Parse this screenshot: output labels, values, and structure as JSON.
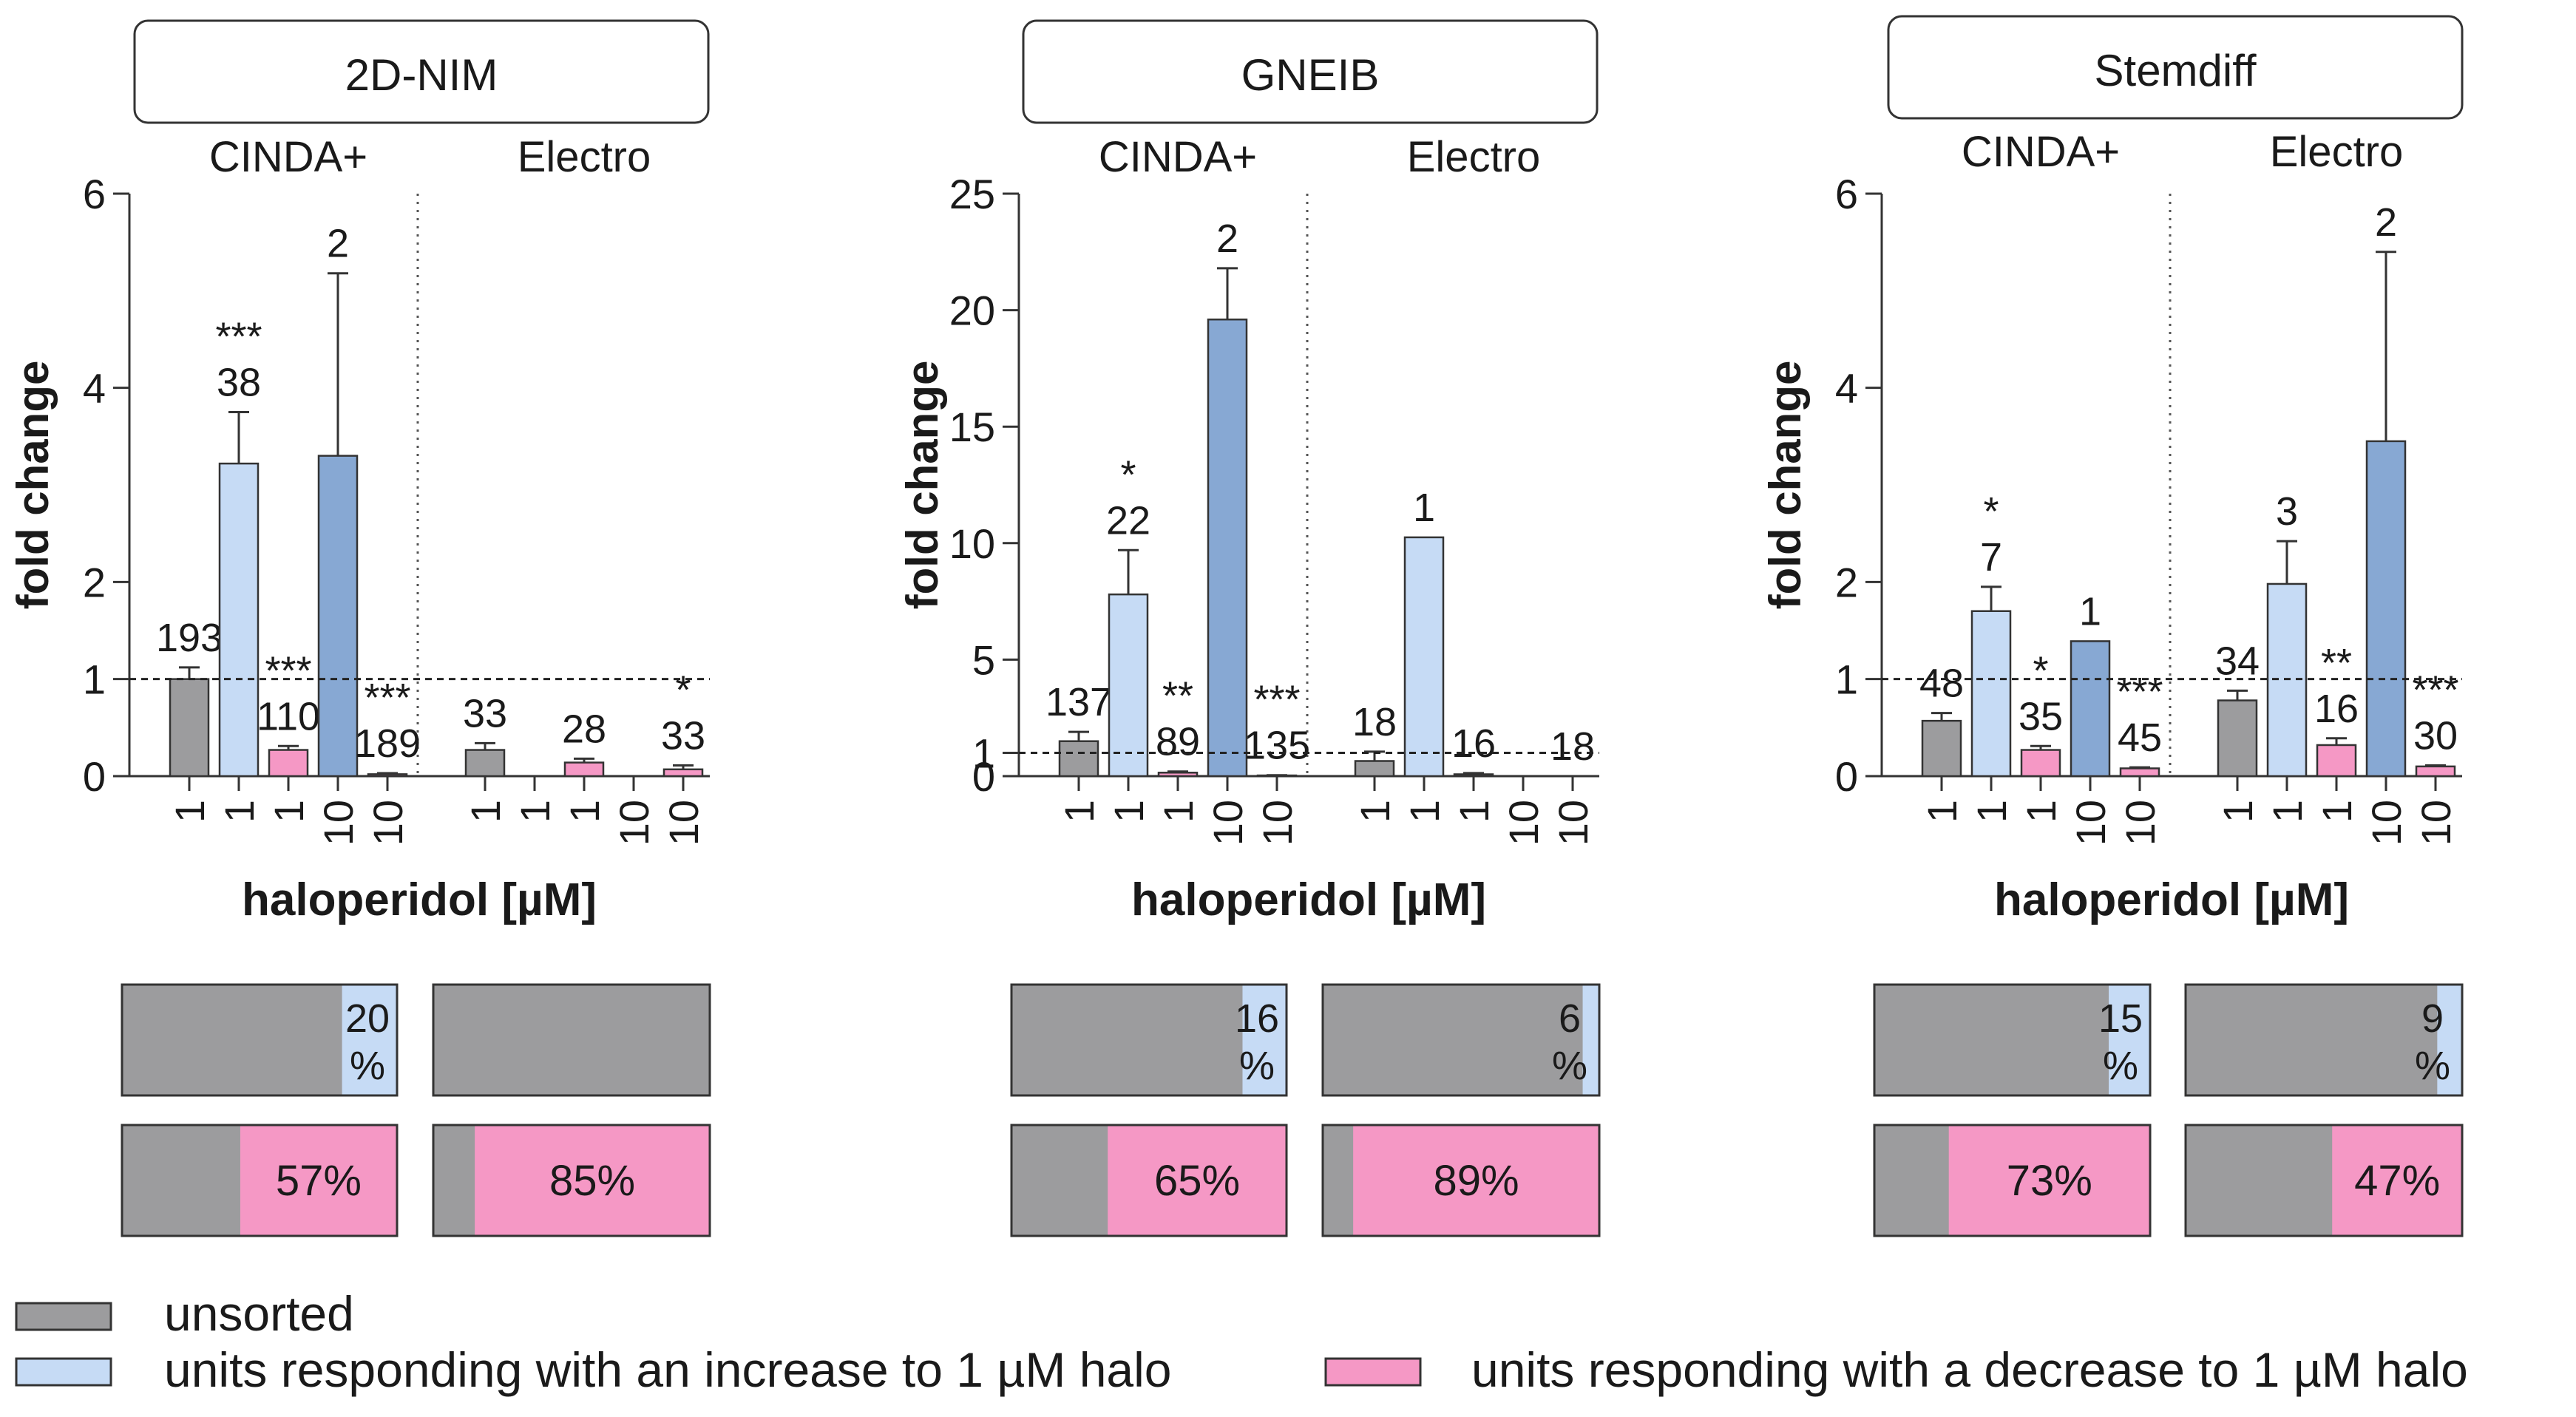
{
  "colors": {
    "unsorted": "#9c9c9e",
    "increase_1": "#c6dbf5",
    "decrease_1": "#f598c5",
    "increase_10": "#87a8d3",
    "decrease_10": "#f598c5"
  },
  "legend": {
    "unsorted": "unsorted",
    "increase": "units responding with an increase to 1 µM halo",
    "decrease": "units responding with a decrease to 1 µM halo"
  },
  "chart_data": [
    {
      "type": "bar",
      "title": "2D-NIM",
      "ylabel": "fold change",
      "xlabel": "haloperidol [µM]",
      "ylim": [
        0,
        6
      ],
      "ticks": [
        "0",
        "1",
        "2",
        "4",
        "6"
      ],
      "tick_values": [
        0,
        1,
        2,
        4,
        6
      ],
      "reference_line": 1,
      "groups": [
        "CINDA+",
        "Electro"
      ],
      "bar_kinds": [
        "unsorted",
        "increase_1",
        "decrease_1",
        "increase_10",
        "decrease_10"
      ],
      "concentrations": [
        "1",
        "1",
        "1",
        "10",
        "10"
      ],
      "values": [
        [
          1.0,
          3.22,
          0.27,
          3.3,
          0.02
        ],
        [
          0.27,
          0,
          0.14,
          0,
          0.07
        ]
      ],
      "errors": [
        [
          0.12,
          0.53,
          0.04,
          1.88,
          0.01
        ],
        [
          0.07,
          0,
          0.04,
          0,
          0.04
        ]
      ],
      "counts": [
        [
          "193",
          "38",
          "110",
          "2",
          "189"
        ],
        [
          "33",
          "",
          "28",
          "",
          "33"
        ]
      ],
      "stars": [
        [
          "",
          "***",
          "***",
          "",
          "***"
        ],
        [
          "",
          "",
          "",
          "",
          "*"
        ]
      ],
      "increase_pct": [
        [
          "20",
          "%"
        ],
        null
      ],
      "decrease_pct": [
        "57%",
        "85%"
      ],
      "increase_frac": [
        0.2,
        0
      ],
      "decrease_frac": [
        0.57,
        0.85
      ]
    },
    {
      "type": "bar",
      "title": "GNEIB",
      "ylabel": "fold change",
      "xlabel": "haloperidol [µM]",
      "ylim": [
        0,
        25
      ],
      "ticks": [
        "0",
        "1",
        "5",
        "10",
        "15",
        "20",
        "25"
      ],
      "tick_values": [
        0,
        1,
        5,
        10,
        15,
        20,
        25
      ],
      "reference_line": 1,
      "groups": [
        "CINDA+",
        "Electro"
      ],
      "bar_kinds": [
        "unsorted",
        "increase_1",
        "decrease_1",
        "increase_10",
        "decrease_10"
      ],
      "concentrations": [
        "1",
        "1",
        "1",
        "10",
        "10"
      ],
      "values": [
        [
          1.5,
          7.8,
          0.15,
          19.6,
          0.03
        ],
        [
          0.65,
          10.25,
          0.08,
          0,
          0
        ]
      ],
      "errors": [
        [
          0.4,
          1.9,
          0.05,
          2.2,
          0.01
        ],
        [
          0.4,
          0,
          0.05,
          0,
          0
        ]
      ],
      "counts": [
        [
          "137",
          "22",
          "89",
          "2",
          "135"
        ],
        [
          "18",
          "1",
          "16",
          "",
          "18"
        ]
      ],
      "stars": [
        [
          "",
          "*",
          "**",
          "",
          "***"
        ],
        [
          "",
          "",
          "",
          "",
          ""
        ]
      ],
      "increase_pct": [
        [
          "16",
          "%"
        ],
        [
          "6",
          "%"
        ]
      ],
      "decrease_pct": [
        "65%",
        "89%"
      ],
      "increase_frac": [
        0.16,
        0.06
      ],
      "decrease_frac": [
        0.65,
        0.89
      ]
    },
    {
      "type": "bar",
      "title": "Stemdiff",
      "ylabel": "fold change",
      "xlabel": "haloperidol [µM]",
      "ylim": [
        0,
        6
      ],
      "ticks": [
        "0",
        "1",
        "2",
        "4",
        "6"
      ],
      "tick_values": [
        0,
        1,
        2,
        4,
        6
      ],
      "reference_line": 1,
      "groups": [
        "CINDA+",
        "Electro"
      ],
      "bar_kinds": [
        "unsorted",
        "increase_1",
        "decrease_1",
        "increase_10",
        "decrease_10"
      ],
      "concentrations": [
        "1",
        "1",
        "1",
        "10",
        "10"
      ],
      "values": [
        [
          0.57,
          1.7,
          0.27,
          1.39,
          0.08
        ],
        [
          0.78,
          1.98,
          0.32,
          3.45,
          0.1
        ]
      ],
      "errors": [
        [
          0.08,
          0.25,
          0.04,
          0,
          0.01
        ],
        [
          0.1,
          0.44,
          0.07,
          1.95,
          0.01
        ]
      ],
      "counts": [
        [
          "48",
          "7",
          "35",
          "1",
          "45"
        ],
        [
          "34",
          "3",
          "16",
          "2",
          "30"
        ]
      ],
      "stars": [
        [
          "",
          "*",
          "*",
          "",
          "***"
        ],
        [
          "",
          "",
          "**",
          "",
          "***"
        ]
      ],
      "increase_pct": [
        [
          "15",
          "%"
        ],
        [
          "9",
          "%"
        ]
      ],
      "decrease_pct": [
        "73%",
        "47%"
      ],
      "increase_frac": [
        0.15,
        0.09
      ],
      "decrease_frac": [
        0.73,
        0.47
      ]
    }
  ]
}
